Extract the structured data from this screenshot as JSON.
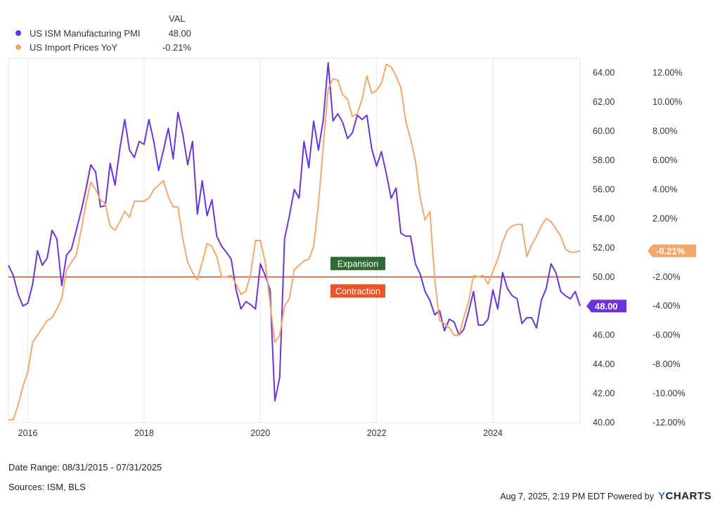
{
  "legend": {
    "header": "VAL",
    "items": [
      {
        "name": "US ISM Manufacturing PMI",
        "value": "48.00",
        "color": "#6a35d6"
      },
      {
        "name": "US Import Prices YoY",
        "value": "-0.21%",
        "color": "#f5a66a"
      }
    ]
  },
  "footer": {
    "date_range": "Date Range: 08/31/2015 - 07/31/2025",
    "sources": "Sources: ISM, BLS",
    "timestamp": "Aug 7, 2025, 2:19 PM EDT Powered by",
    "brand": "CHARTS",
    "brand_prefix": "Y"
  },
  "chart_data": {
    "type": "line",
    "x_tick_labels": [
      "2016",
      "2018",
      "2020",
      "2022",
      "2024"
    ],
    "x_range": [
      "2015-09",
      "2025-07"
    ],
    "left_axis": {
      "series": "US ISM Manufacturing PMI",
      "ylim": [
        40,
        65
      ],
      "ticks": [
        "40.00",
        "42.00",
        "44.00",
        "46.00",
        "48.00",
        "50.00",
        "52.00",
        "54.00",
        "56.00",
        "58.00",
        "60.00",
        "62.00",
        "64.00"
      ]
    },
    "right_axis": {
      "series": "US Import Prices YoY",
      "ylim": [
        -12,
        13
      ],
      "ticks": [
        "-12.00%",
        "-10.00%",
        "-8.00%",
        "-6.00%",
        "-4.00%",
        "-2.00%",
        "0.00%",
        "2.00%",
        "4.00%",
        "6.00%",
        "8.00%",
        "10.00%",
        "12.00%"
      ]
    },
    "reference_line": {
      "value": 50,
      "axis": "left",
      "color": "#e8552b",
      "upper_label": "Expansion",
      "lower_label": "Contraction"
    },
    "end_labels": {
      "pmi": "48.00",
      "import": "-0.21%"
    },
    "series": [
      {
        "name": "US ISM Manufacturing PMI",
        "axis": "left",
        "color": "#6a35d6",
        "x": [
          "2015-09",
          "2015-10",
          "2015-11",
          "2015-12",
          "2016-01",
          "2016-02",
          "2016-03",
          "2016-04",
          "2016-05",
          "2016-06",
          "2016-07",
          "2016-08",
          "2016-09",
          "2016-10",
          "2016-11",
          "2016-12",
          "2017-01",
          "2017-02",
          "2017-03",
          "2017-04",
          "2017-05",
          "2017-06",
          "2017-07",
          "2017-08",
          "2017-09",
          "2017-10",
          "2017-11",
          "2017-12",
          "2018-01",
          "2018-02",
          "2018-03",
          "2018-04",
          "2018-05",
          "2018-06",
          "2018-07",
          "2018-08",
          "2018-09",
          "2018-10",
          "2018-11",
          "2018-12",
          "2019-01",
          "2019-02",
          "2019-03",
          "2019-04",
          "2019-05",
          "2019-06",
          "2019-07",
          "2019-08",
          "2019-09",
          "2019-10",
          "2019-11",
          "2019-12",
          "2020-01",
          "2020-02",
          "2020-03",
          "2020-04",
          "2020-05",
          "2020-06",
          "2020-07",
          "2020-08",
          "2020-09",
          "2020-10",
          "2020-11",
          "2020-12",
          "2021-01",
          "2021-02",
          "2021-03",
          "2021-04",
          "2021-05",
          "2021-06",
          "2021-07",
          "2021-08",
          "2021-09",
          "2021-10",
          "2021-11",
          "2021-12",
          "2022-01",
          "2022-02",
          "2022-03",
          "2022-04",
          "2022-05",
          "2022-06",
          "2022-07",
          "2022-08",
          "2022-09",
          "2022-10",
          "2022-11",
          "2022-12",
          "2023-01",
          "2023-02",
          "2023-03",
          "2023-04",
          "2023-05",
          "2023-06",
          "2023-07",
          "2023-08",
          "2023-09",
          "2023-10",
          "2023-11",
          "2023-12",
          "2024-01",
          "2024-02",
          "2024-03",
          "2024-04",
          "2024-05",
          "2024-06",
          "2024-07",
          "2024-08",
          "2024-09",
          "2024-10",
          "2024-11",
          "2024-12",
          "2025-01",
          "2025-02",
          "2025-03",
          "2025-04",
          "2025-05",
          "2025-06",
          "2025-07"
        ],
        "y": [
          50.8,
          50.1,
          48.8,
          48.0,
          48.2,
          49.5,
          51.8,
          50.8,
          51.3,
          53.2,
          52.6,
          49.4,
          51.5,
          51.9,
          53.2,
          54.5,
          56.0,
          57.7,
          57.2,
          54.8,
          54.9,
          57.8,
          56.3,
          58.8,
          60.8,
          58.7,
          58.2,
          59.3,
          59.1,
          60.8,
          59.3,
          57.3,
          58.7,
          60.2,
          58.1,
          61.3,
          59.8,
          57.7,
          59.3,
          54.3,
          56.6,
          54.2,
          55.3,
          52.8,
          52.1,
          51.7,
          51.2,
          49.1,
          47.8,
          48.3,
          48.1,
          47.8,
          50.9,
          50.1,
          49.1,
          41.5,
          43.1,
          52.6,
          54.2,
          56.0,
          55.4,
          59.3,
          57.5,
          60.7,
          58.7,
          60.8,
          64.7,
          60.7,
          61.2,
          60.6,
          59.5,
          59.9,
          61.1,
          60.8,
          61.1,
          58.8,
          57.6,
          58.6,
          57.1,
          55.4,
          56.1,
          53.0,
          52.8,
          52.8,
          50.9,
          50.2,
          49.0,
          48.4,
          47.4,
          47.7,
          46.3,
          47.1,
          46.9,
          46.0,
          46.4,
          47.6,
          49.0,
          46.7,
          46.7,
          47.1,
          49.1,
          47.8,
          50.3,
          49.2,
          48.7,
          48.5,
          46.8,
          47.2,
          47.2,
          46.5,
          48.4,
          49.2,
          50.9,
          50.3,
          49.0,
          48.7,
          48.5,
          49.0,
          48.0
        ]
      },
      {
        "name": "US Import Prices YoY",
        "axis": "right",
        "color": "#f5a66a",
        "x": [
          "2015-09",
          "2015-10",
          "2015-11",
          "2015-12",
          "2016-01",
          "2016-02",
          "2016-03",
          "2016-04",
          "2016-05",
          "2016-06",
          "2016-07",
          "2016-08",
          "2016-09",
          "2016-10",
          "2016-11",
          "2016-12",
          "2017-01",
          "2017-02",
          "2017-03",
          "2017-04",
          "2017-05",
          "2017-06",
          "2017-07",
          "2017-08",
          "2017-09",
          "2017-10",
          "2017-11",
          "2017-12",
          "2018-01",
          "2018-02",
          "2018-03",
          "2018-04",
          "2018-05",
          "2018-06",
          "2018-07",
          "2018-08",
          "2018-09",
          "2018-10",
          "2018-11",
          "2018-12",
          "2019-01",
          "2019-02",
          "2019-03",
          "2019-04",
          "2019-05",
          "2019-06",
          "2019-07",
          "2019-08",
          "2019-09",
          "2019-10",
          "2019-11",
          "2019-12",
          "2020-01",
          "2020-02",
          "2020-03",
          "2020-04",
          "2020-05",
          "2020-06",
          "2020-07",
          "2020-08",
          "2020-09",
          "2020-10",
          "2020-11",
          "2020-12",
          "2021-01",
          "2021-02",
          "2021-03",
          "2021-04",
          "2021-05",
          "2021-06",
          "2021-07",
          "2021-08",
          "2021-09",
          "2021-10",
          "2021-11",
          "2021-12",
          "2022-01",
          "2022-02",
          "2022-03",
          "2022-04",
          "2022-05",
          "2022-06",
          "2022-07",
          "2022-08",
          "2022-09",
          "2022-10",
          "2022-11",
          "2022-12",
          "2023-01",
          "2023-02",
          "2023-03",
          "2023-04",
          "2023-05",
          "2023-06",
          "2023-07",
          "2023-08",
          "2023-09",
          "2023-10",
          "2023-11",
          "2023-12",
          "2024-01",
          "2024-02",
          "2024-03",
          "2024-04",
          "2024-05",
          "2024-06",
          "2024-07",
          "2024-08",
          "2024-09",
          "2024-10",
          "2024-11",
          "2024-12",
          "2025-01",
          "2025-02",
          "2025-03",
          "2025-04",
          "2025-05",
          "2025-06",
          "2025-07"
        ],
        "y": [
          -11.8,
          -11.8,
          -10.8,
          -9.5,
          -8.5,
          -6.5,
          -6.0,
          -5.5,
          -5.0,
          -4.8,
          -4.2,
          -3.5,
          -1.5,
          -1.0,
          -0.5,
          1.2,
          3.0,
          4.5,
          4.0,
          3.3,
          3.0,
          1.5,
          1.2,
          1.8,
          2.5,
          2.1,
          3.2,
          3.2,
          3.2,
          3.4,
          4.0,
          4.3,
          4.6,
          3.5,
          2.8,
          2.8,
          0.6,
          -1.0,
          -1.7,
          -2.2,
          -1.0,
          0.3,
          0.1,
          -0.6,
          -2.0,
          -2.0,
          -1.9,
          -2.5,
          -3.2,
          -3.0,
          -1.8,
          0.5,
          0.5,
          -1.0,
          -3.8,
          -6.5,
          -6.0,
          -4.0,
          -3.5,
          -1.5,
          -1.2,
          -0.9,
          -0.8,
          0.1,
          3.0,
          7.0,
          10.9,
          11.6,
          11.5,
          10.5,
          10.2,
          9.0,
          9.2,
          10.2,
          11.8,
          10.6,
          10.8,
          11.3,
          12.6,
          12.4,
          11.8,
          11.0,
          8.7,
          7.5,
          6.0,
          3.4,
          1.9,
          2.5,
          -2.2,
          -5.0,
          -5.2,
          -5.5,
          -6.0,
          -6.0,
          -4.8,
          -3.7,
          -1.9,
          -2.0,
          -1.9,
          -2.5,
          -1.6,
          -0.8,
          0.4,
          1.2,
          1.5,
          1.6,
          1.6,
          -0.6,
          0.2,
          0.8,
          1.5,
          2.0,
          1.8,
          1.3,
          0.8,
          -0.1,
          -0.3,
          -0.3,
          -0.21
        ]
      }
    ]
  }
}
